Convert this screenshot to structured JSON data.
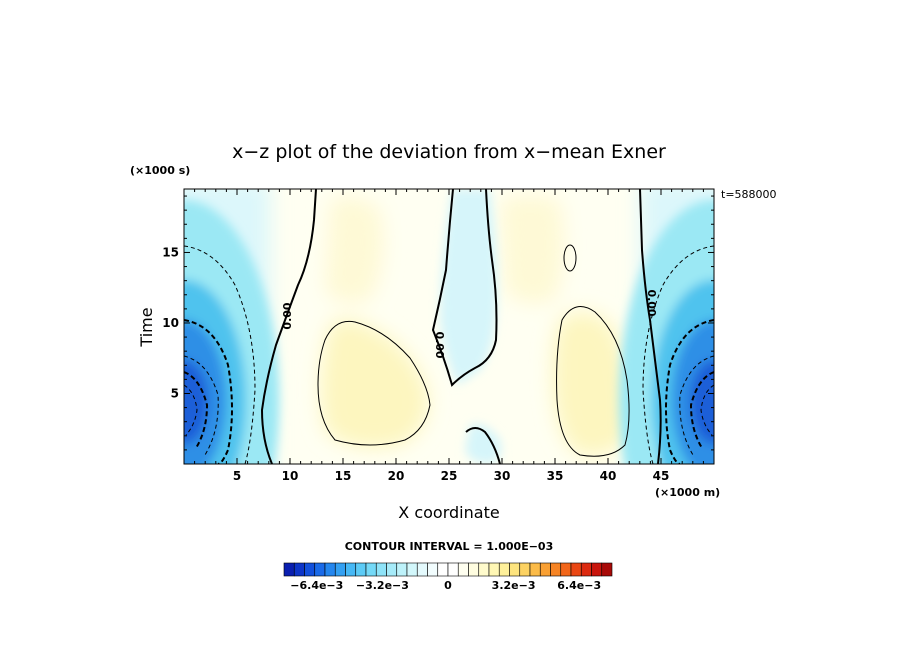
{
  "chart_data": {
    "type": "heatmap",
    "title": "x−z plot of the deviation from x−mean Exner",
    "xlabel": "X coordinate",
    "ylabel": "Time",
    "x_unit": "(×1000 m)",
    "y_unit": "(×1000 s)",
    "xlim": [
      0,
      50
    ],
    "ylim": [
      0,
      19.5
    ],
    "x_ticks": [
      5,
      10,
      15,
      20,
      25,
      30,
      35,
      40,
      45
    ],
    "y_ticks": [
      5,
      10,
      15
    ],
    "time_label": "t=588000",
    "contour_interval_text": "CONTOUR INTERVAL = 1.000E−03",
    "contour_labels": [
      "0.00",
      "0.00",
      "0.00"
    ],
    "colorbar": {
      "range": [
        -0.008,
        0.008
      ],
      "tick_labels": [
        "−6.4e−3",
        "−3.2e−3",
        "0",
        "3.2e−3",
        "6.4e−3"
      ],
      "tick_values": [
        -0.0064,
        -0.0032,
        0,
        0.0032,
        0.0064
      ]
    },
    "features": [
      {
        "name": "negative minimum at left edge",
        "x": 0,
        "y": 4,
        "value": -0.0065
      },
      {
        "name": "negative minimum at right edge",
        "x": 50,
        "y": 4,
        "value": -0.0065
      },
      {
        "name": "positive maximum",
        "x": 18,
        "y": 5,
        "value": 0.002
      },
      {
        "name": "positive maximum",
        "x": 38.5,
        "y": 5,
        "value": 0.0025
      },
      {
        "name": "negative column",
        "x": 26.5,
        "y": 14,
        "value": -0.0008
      }
    ]
  }
}
